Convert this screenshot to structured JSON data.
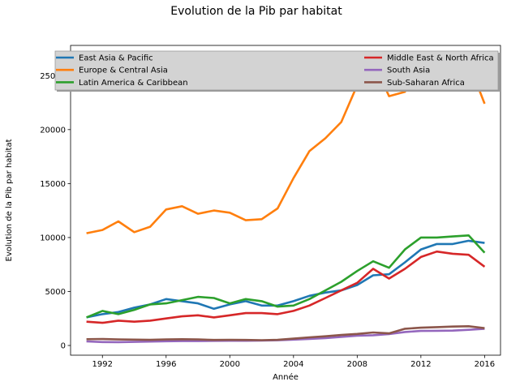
{
  "chart_data": {
    "type": "line",
    "title": "Evolution de la Pib par habitat",
    "xlabel": "Année",
    "ylabel": "Evolution de la Pib par habitat",
    "xlim": [
      1990,
      2017
    ],
    "ylim": [
      -900,
      27800
    ],
    "x_ticks": [
      1992,
      1996,
      2000,
      2004,
      2008,
      2012,
      2016
    ],
    "y_ticks": [
      0,
      5000,
      10000,
      15000,
      20000,
      25000
    ],
    "grid": false,
    "legend": {
      "placement": "top",
      "columns": 2
    },
    "x": [
      1991,
      1992,
      1993,
      1994,
      1995,
      1996,
      1997,
      1998,
      1999,
      2000,
      2001,
      2002,
      2003,
      2004,
      2005,
      2006,
      2007,
      2008,
      2009,
      2010,
      2011,
      2012,
      2013,
      2014,
      2015,
      2016
    ],
    "series": [
      {
        "name": "East Asia & Pacific",
        "color": "#1f77b4",
        "values": [
          2600,
          2900,
          3100,
          3500,
          3800,
          4300,
          4100,
          3900,
          3400,
          3800,
          4100,
          3700,
          3700,
          4100,
          4600,
          4900,
          5100,
          5600,
          6500,
          6600,
          7700,
          8900,
          9400,
          9400,
          9700,
          9500
        ]
      },
      {
        "name": "Europe & Central Asia",
        "color": "#ff7f0e",
        "values": [
          10400,
          10700,
          11500,
          10500,
          11000,
          12600,
          12900,
          12200,
          12500,
          12300,
          11600,
          11700,
          12700,
          15500,
          18000,
          19200,
          20700,
          24100,
          26300,
          23100,
          23500,
          26000,
          24900,
          26000,
          26200,
          22400
        ]
      },
      {
        "name": "Latin America & Caribbean",
        "color": "#2ca02c",
        "values": [
          2600,
          3200,
          2900,
          3300,
          3800,
          3900,
          4200,
          4500,
          4400,
          3900,
          4300,
          4100,
          3600,
          3700,
          4300,
          5100,
          5900,
          6900,
          7800,
          7200,
          8900,
          10000,
          10000,
          10100,
          10200,
          8600
        ]
      },
      {
        "name": "Middle East & North Africa",
        "color": "#d62728",
        "values": [
          2200,
          2100,
          2300,
          2200,
          2300,
          2500,
          2700,
          2800,
          2600,
          2800,
          3000,
          3000,
          2900,
          3200,
          3700,
          4400,
          5100,
          5800,
          7100,
          6200,
          7100,
          8200,
          8700,
          8500,
          8400,
          7300
        ]
      },
      {
        "name": "South Asia",
        "color": "#9467bd",
        "values": [
          380,
          320,
          310,
          330,
          360,
          390,
          410,
          410,
          430,
          440,
          440,
          450,
          480,
          540,
          600,
          680,
          790,
          900,
          950,
          1050,
          1250,
          1350,
          1360,
          1380,
          1450,
          1550
        ]
      },
      {
        "name": "Sub-Saharan Africa",
        "color": "#8c564b",
        "values": [
          580,
          600,
          560,
          540,
          520,
          560,
          580,
          560,
          510,
          520,
          510,
          490,
          520,
          630,
          750,
          850,
          970,
          1070,
          1200,
          1120,
          1550,
          1650,
          1700,
          1750,
          1780,
          1600
        ]
      }
    ]
  }
}
